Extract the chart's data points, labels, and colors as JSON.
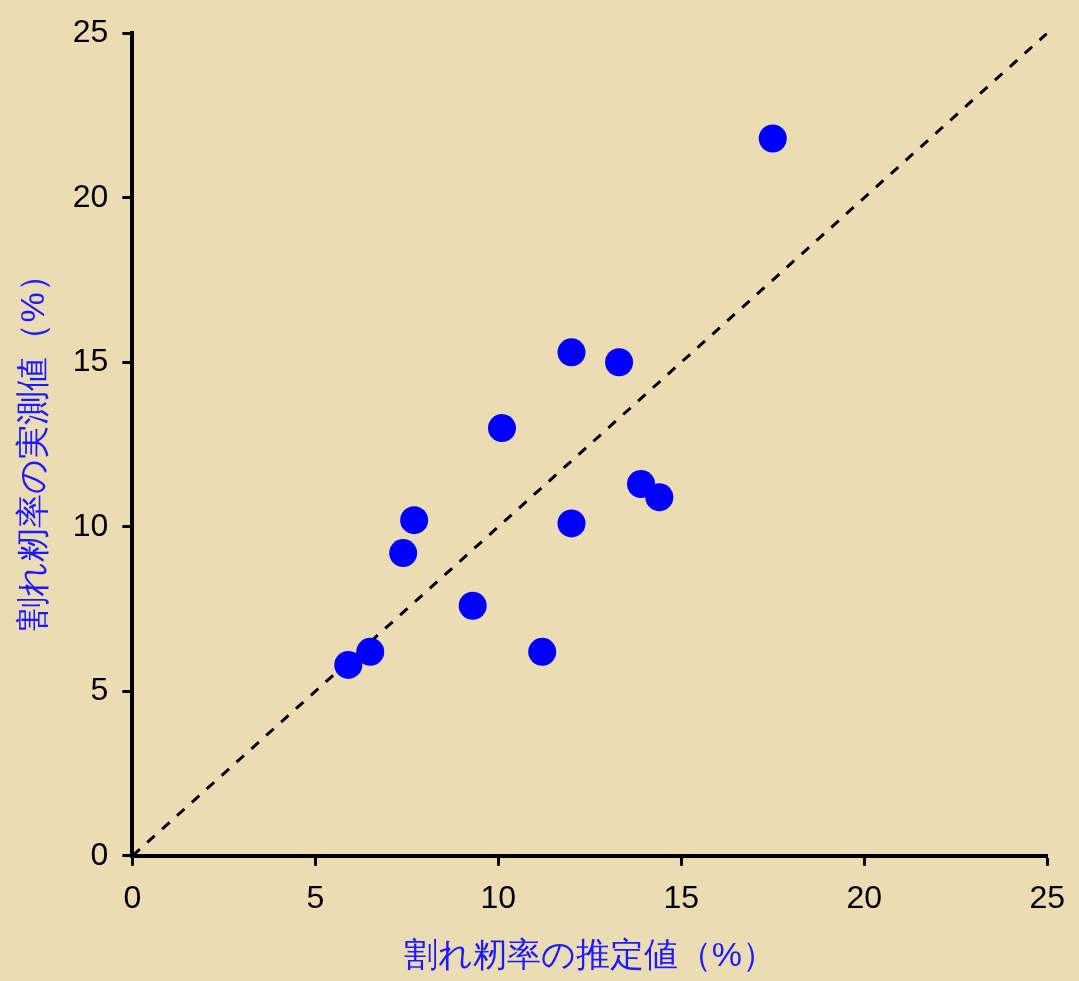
{
  "chart_data": {
    "type": "scatter",
    "xlabel": "割れ籾率の推定値（%）",
    "ylabel": "割れ籾率の実測値（%）",
    "xlim": [
      0,
      25
    ],
    "xticks": [
      0,
      5,
      10,
      15,
      20,
      25
    ],
    "ylim": [
      0,
      25
    ],
    "yticks": [
      0,
      5,
      10,
      15,
      20,
      25
    ],
    "marker": "circle",
    "series": [
      {
        "type": "scatter",
        "color": "#0000ff",
        "x": [
          5.9,
          6.5,
          7.4,
          7.7,
          9.3,
          10.1,
          11.2,
          12.0,
          12.0,
          13.3,
          13.9,
          14.4,
          17.5
        ],
        "values": [
          5.8,
          6.2,
          9.2,
          10.2,
          7.6,
          13.0,
          6.2,
          10.1,
          15.3,
          15.0,
          11.3,
          10.9,
          21.8
        ]
      },
      {
        "type": "line",
        "color": "#000000",
        "x": [
          0,
          25
        ],
        "values": [
          0,
          25
        ],
        "line_style": "dashed",
        "marker": "none"
      }
    ]
  }
}
